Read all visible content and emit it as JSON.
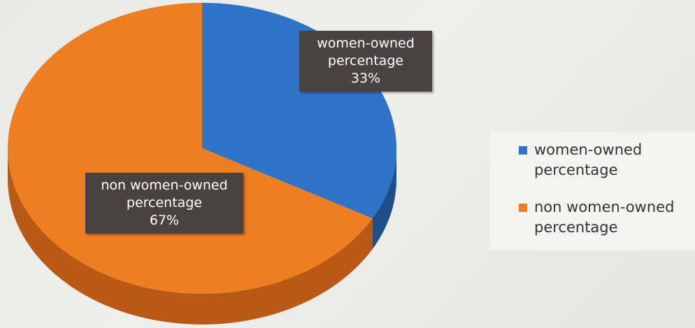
{
  "chart_data": {
    "type": "pie",
    "style": "3d",
    "slices": [
      {
        "label": "women-owned percentage",
        "label_lines": [
          "women-owned",
          "percentage"
        ],
        "value": 33,
        "value_label": "33%",
        "color": "#2f73c6",
        "side_color": "#1f4f8a"
      },
      {
        "label": "non women-owned percentage",
        "label_lines": [
          "non women-owned",
          "percentage"
        ],
        "value": 67,
        "value_label": "67%",
        "color": "#ef7d22",
        "side_color": "#b85a16"
      }
    ],
    "legend": {
      "placement": "right",
      "entries": [
        {
          "lines": [
            "women-owned",
            "percentage"
          ],
          "color": "#2f73c6"
        },
        {
          "lines": [
            "non women-owned",
            "percentage"
          ],
          "color": "#ef7d22"
        }
      ]
    }
  }
}
